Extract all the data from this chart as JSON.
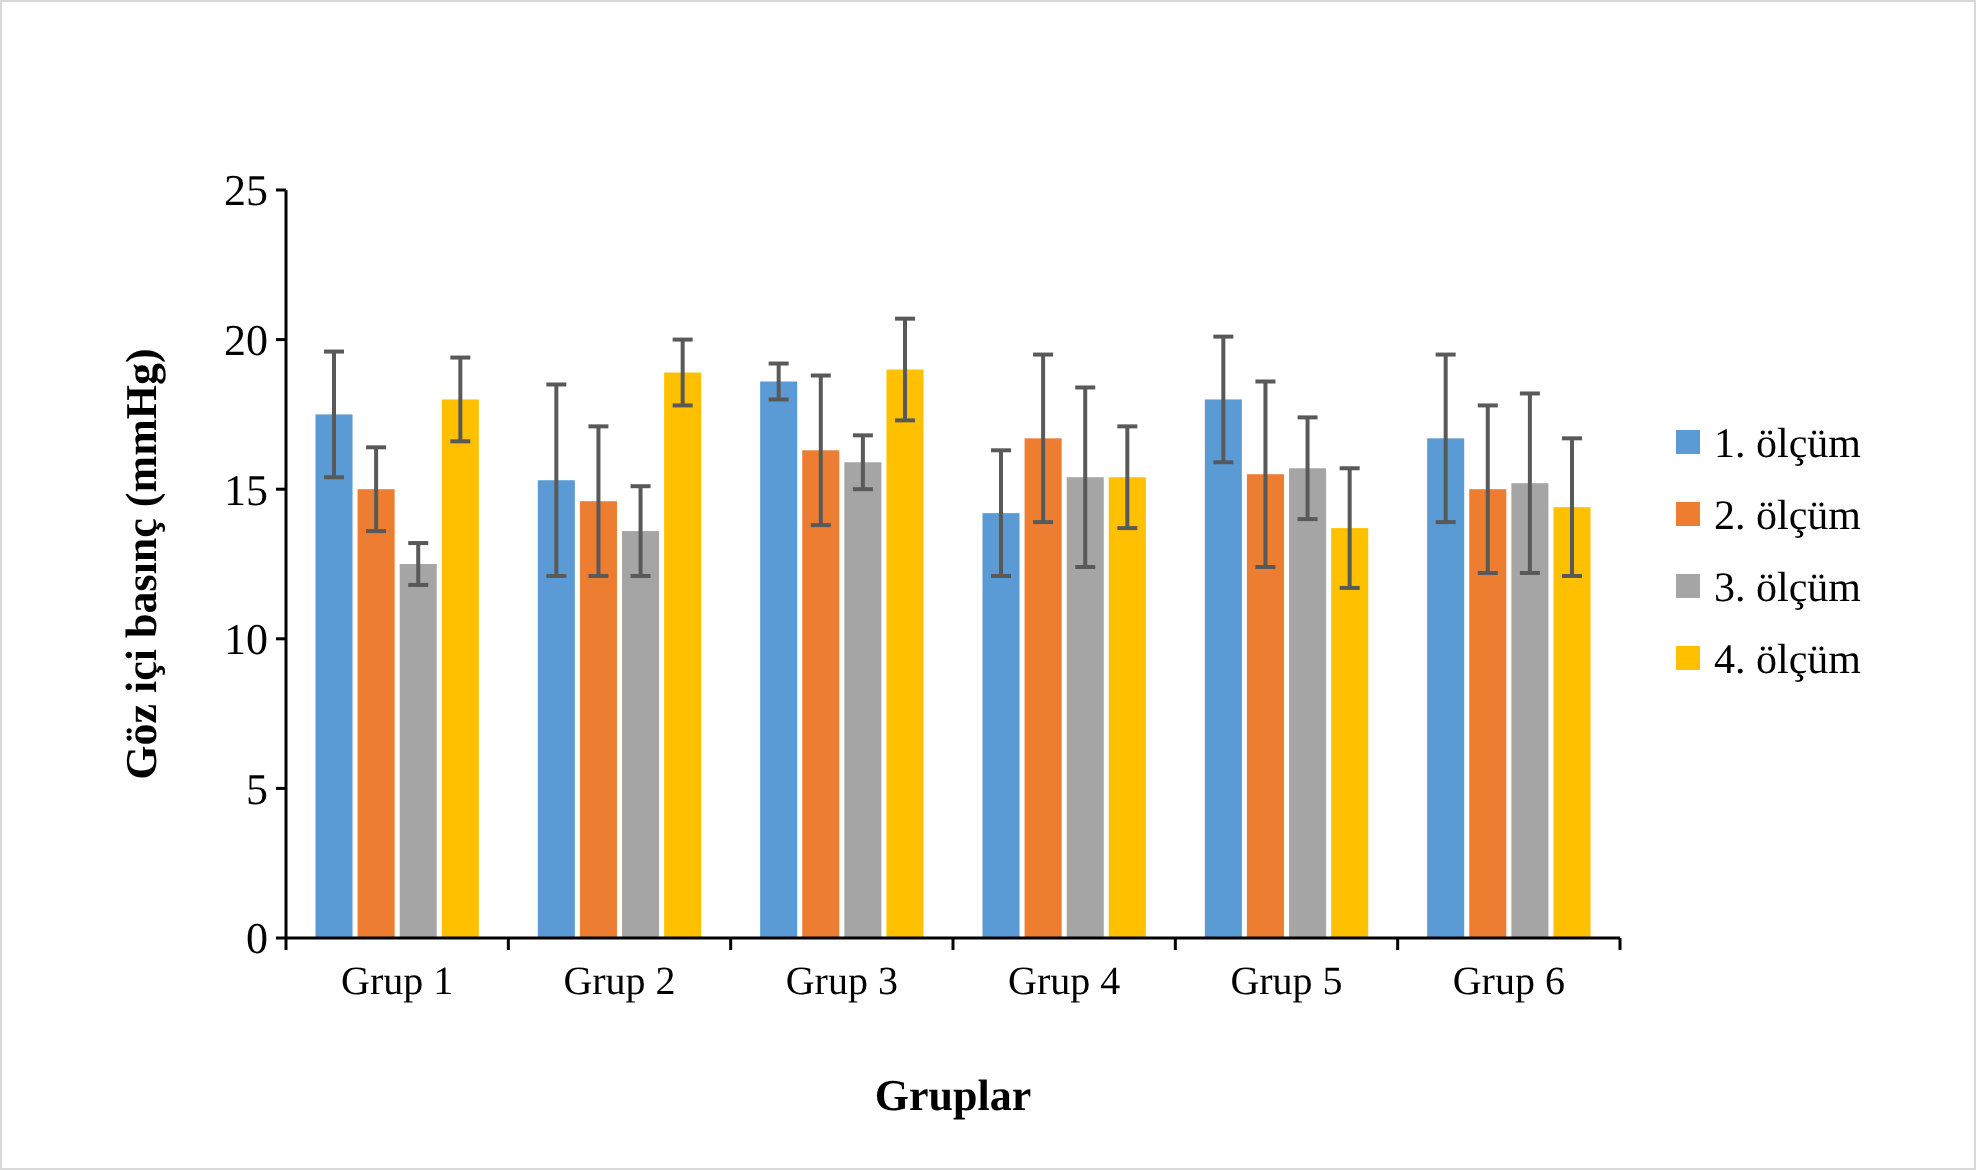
{
  "chart_data": {
    "type": "bar",
    "xlabel": "Gruplar",
    "ylabel": "Göz içi basınç (mmHg)",
    "categories": [
      "Grup 1",
      "Grup 2",
      "Grup 3",
      "Grup 4",
      "Grup 5",
      "Grup 6"
    ],
    "series": [
      {
        "name": "1. ölçüm",
        "color": "#5b9bd5",
        "values": [
          17.5,
          15.3,
          18.6,
          14.2,
          18.0,
          16.7
        ],
        "errors": [
          2.1,
          3.2,
          0.6,
          2.1,
          2.1,
          2.8
        ]
      },
      {
        "name": "2. ölçüm",
        "color": "#ed7d31",
        "values": [
          15.0,
          14.6,
          16.3,
          16.7,
          15.5,
          15.0
        ],
        "errors": [
          1.4,
          2.5,
          2.5,
          2.8,
          3.1,
          2.8
        ]
      },
      {
        "name": "3. ölçüm",
        "color": "#a5a5a5",
        "values": [
          12.5,
          13.6,
          15.9,
          15.4,
          15.7,
          15.2
        ],
        "errors": [
          0.7,
          1.5,
          0.9,
          3.0,
          1.7,
          3.0
        ]
      },
      {
        "name": "4. ölçüm",
        "color": "#ffc000",
        "values": [
          18.0,
          18.9,
          19.0,
          15.4,
          13.7,
          14.4
        ],
        "errors": [
          1.4,
          1.1,
          1.7,
          1.7,
          2.0,
          2.3
        ]
      }
    ],
    "ylim": [
      0,
      25
    ],
    "yticks": [
      0,
      5,
      10,
      15,
      20,
      25
    ],
    "legend": "right"
  }
}
